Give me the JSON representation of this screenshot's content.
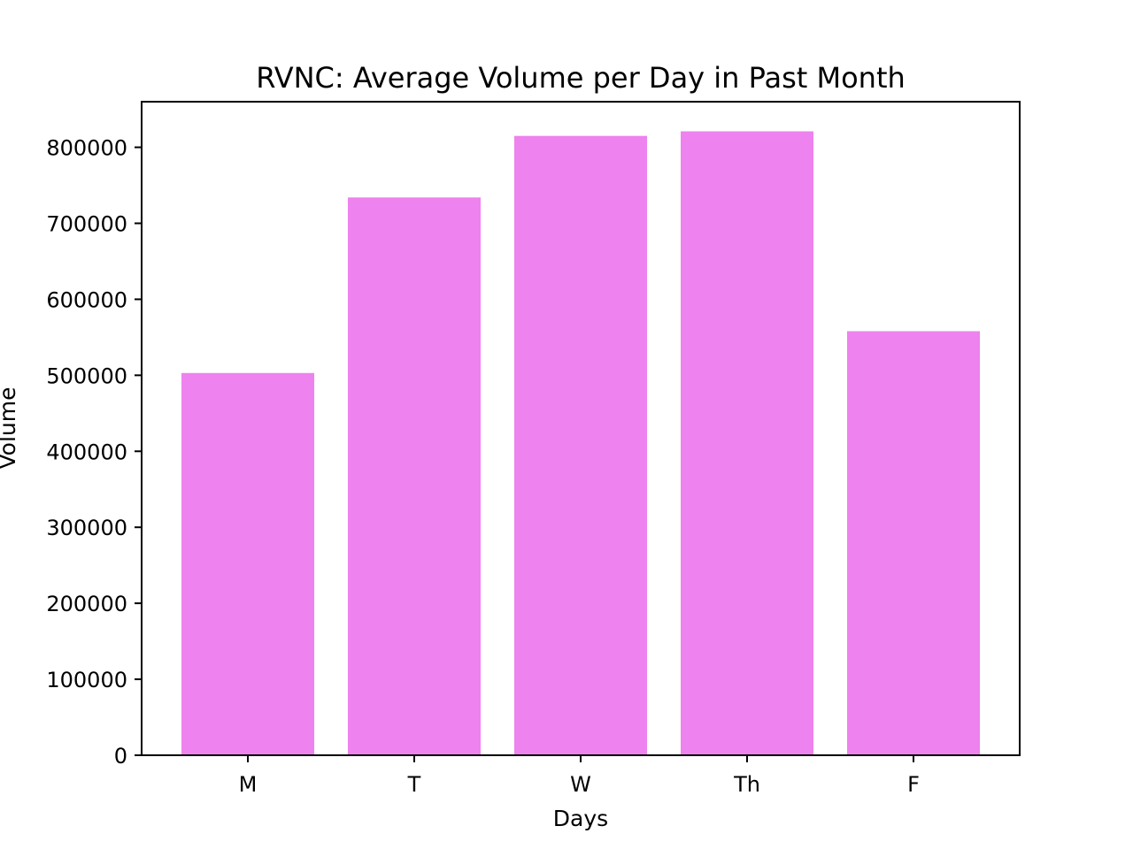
{
  "chart_data": {
    "type": "bar",
    "title": "RVNC: Average Volume per Day in Past Month",
    "xlabel": "Days",
    "ylabel": "Volume",
    "categories": [
      "M",
      "T",
      "W",
      "Th",
      "F"
    ],
    "values": [
      503000,
      734000,
      815000,
      821000,
      558000
    ],
    "ylim": [
      0,
      860000
    ],
    "yticks": [
      0,
      100000,
      200000,
      300000,
      400000,
      500000,
      600000,
      700000,
      800000
    ],
    "ytick_labels": [
      "0",
      "100000",
      "200000",
      "300000",
      "400000",
      "500000",
      "600000",
      "700000",
      "800000"
    ],
    "bar_color": "#ee82ee",
    "grid": false,
    "legend": "none"
  }
}
